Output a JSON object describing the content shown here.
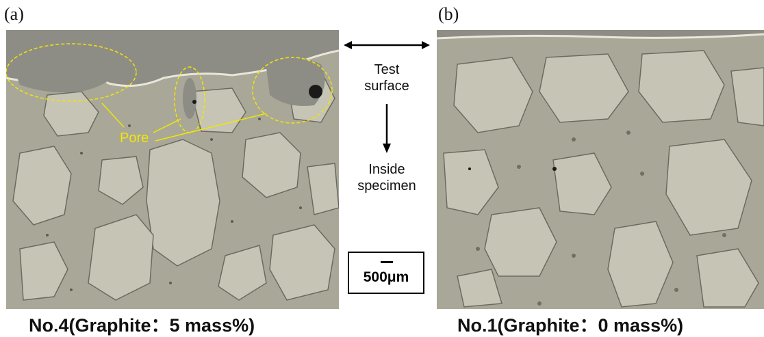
{
  "panels": [
    {
      "label": "(a)",
      "caption": "No.4(Graphite：5 mass%)"
    },
    {
      "label": "(b)",
      "caption": "No.1(Graphite：0 mass%)"
    }
  ],
  "annotation": {
    "pore_label": "Pore",
    "color": "#f2e600"
  },
  "direction": {
    "test_surface_line1": "Test",
    "test_surface_line2": "surface",
    "inside_line1": "Inside",
    "inside_line2": "specimen"
  },
  "scale_bar": {
    "label": "500μm"
  },
  "colors": {
    "matrix": "#b9b7a6",
    "particle": "#c8c6b6",
    "resin": "#8d8c83",
    "pore": "#1a1a1a"
  }
}
